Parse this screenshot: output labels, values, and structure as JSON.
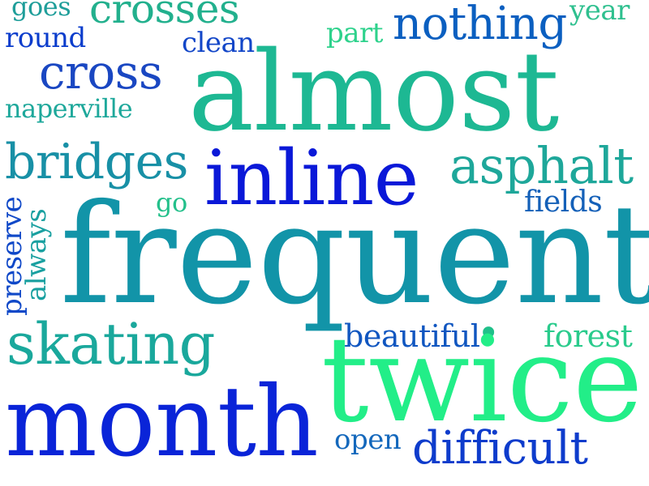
{
  "words": {
    "goes": {
      "text": "goes",
      "color": "#1f9e9a"
    },
    "crosses": {
      "text": "crosses",
      "color": "#22b08d"
    },
    "year": {
      "text": "year",
      "color": "#2fc08f"
    },
    "round": {
      "text": "round",
      "color": "#0a3ccc"
    },
    "clean": {
      "text": "clean",
      "color": "#1246c8"
    },
    "part": {
      "text": "part",
      "color": "#2ed28c"
    },
    "nothing": {
      "text": "nothing",
      "color": "#0b5fc0"
    },
    "cross": {
      "text": "cross",
      "color": "#1a47c2"
    },
    "almost": {
      "text": "almost",
      "color": "#1db893"
    },
    "naperville": {
      "text": "naperville",
      "color": "#1ea89b"
    },
    "bridges": {
      "text": "bridges",
      "color": "#1890a6"
    },
    "inline": {
      "text": "inline",
      "color": "#0a18d8"
    },
    "asphalt": {
      "text": "asphalt",
      "color": "#1ea79a"
    },
    "go": {
      "text": "go",
      "color": "#24c08b"
    },
    "fields": {
      "text": "fields",
      "color": "#1460b8"
    },
    "preserve": {
      "text": "preserve",
      "color": "#0f48c8"
    },
    "always": {
      "text": "always",
      "color": "#19a0a0"
    },
    "frequent": {
      "text": "frequent",
      "color": "#1294a8"
    },
    "skating": {
      "text": "skating",
      "color": "#1aa89c"
    },
    "beautiful": {
      "text": "beautiful",
      "color": "#1056c0"
    },
    "dot": {
      "text": "•",
      "color": "#20c08a"
    },
    "forest": {
      "text": "forest",
      "color": "#2acb8c"
    },
    "twice": {
      "text": "twice",
      "color": "#22ee88"
    },
    "month": {
      "text": "month",
      "color": "#0a24d8"
    },
    "open": {
      "text": "open",
      "color": "#1468bc"
    },
    "difficult": {
      "text": "difficult",
      "color": "#0e3ccc"
    }
  }
}
